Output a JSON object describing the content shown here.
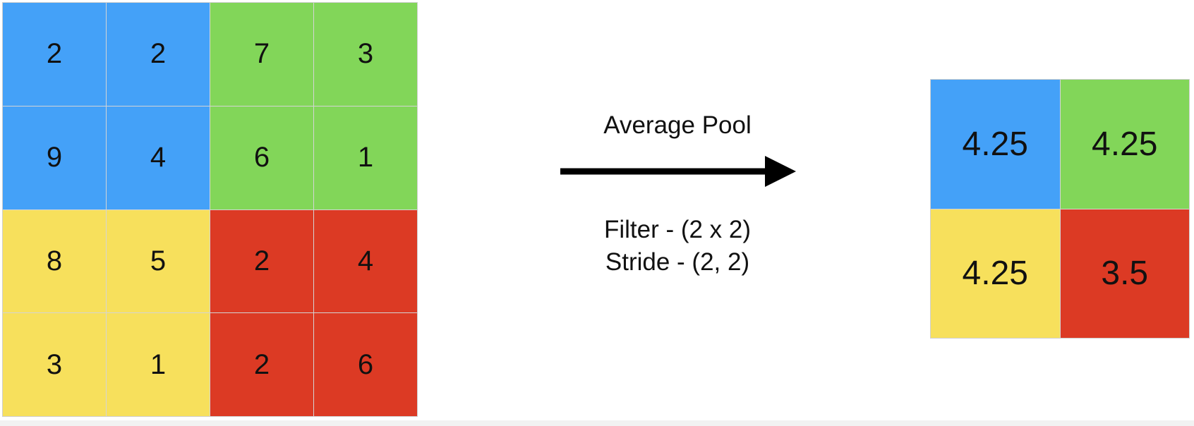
{
  "colors": {
    "blue": "#44a1f8",
    "green": "#82d659",
    "yellow": "#f7e05c",
    "red": "#dc3a24",
    "arrow": "#000000"
  },
  "input_matrix": {
    "rows": [
      [
        {
          "value": "2",
          "color": "blue"
        },
        {
          "value": "2",
          "color": "blue"
        },
        {
          "value": "7",
          "color": "green"
        },
        {
          "value": "3",
          "color": "green"
        }
      ],
      [
        {
          "value": "9",
          "color": "blue"
        },
        {
          "value": "4",
          "color": "blue"
        },
        {
          "value": "6",
          "color": "green"
        },
        {
          "value": "1",
          "color": "green"
        }
      ],
      [
        {
          "value": "8",
          "color": "yellow"
        },
        {
          "value": "5",
          "color": "yellow"
        },
        {
          "value": "2",
          "color": "red"
        },
        {
          "value": "4",
          "color": "red"
        }
      ],
      [
        {
          "value": "3",
          "color": "yellow"
        },
        {
          "value": "1",
          "color": "yellow"
        },
        {
          "value": "2",
          "color": "red"
        },
        {
          "value": "6",
          "color": "red"
        }
      ]
    ]
  },
  "operation": {
    "title": "Average Pool",
    "filter": "Filter - (2 x 2)",
    "stride": "Stride - (2, 2)"
  },
  "output_matrix": {
    "rows": [
      [
        {
          "value": "4.25",
          "color": "blue"
        },
        {
          "value": "4.25",
          "color": "green"
        }
      ],
      [
        {
          "value": "4.25",
          "color": "yellow"
        },
        {
          "value": "3.5",
          "color": "red"
        }
      ]
    ]
  }
}
